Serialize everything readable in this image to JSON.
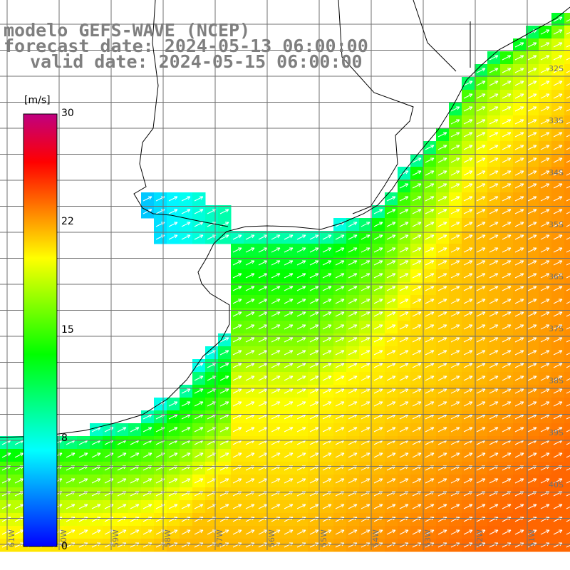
{
  "header": {
    "model": "modelo GEFS-WAVE (NCEP)",
    "forecast": "forecast date: 2024-05-13 06:00:00",
    "valid": "valid date: 2024-05-15 06:00:00"
  },
  "colorbar": {
    "unit": "[m/s]",
    "min": 0,
    "max": 30,
    "ticks": [
      "30",
      "22",
      "15",
      "8",
      "0"
    ],
    "tick_values": [
      30,
      22,
      15,
      8,
      0
    ],
    "gradient_colors": [
      "#0000ff",
      "#0080ff",
      "#00ffff",
      "#00ff80",
      "#00ff00",
      "#80ff00",
      "#ffff00",
      "#ff8000",
      "#ff0000",
      "#c00080"
    ]
  },
  "map": {
    "lat_labels": [
      "32S",
      "33S",
      "34S",
      "35S",
      "36S",
      "37S",
      "38S",
      "39S",
      "40S"
    ],
    "lon_labels": [
      "61W",
      "60W",
      "59W",
      "58W",
      "57W",
      "56W",
      "55W",
      "54W",
      "53W",
      "52W",
      "51W"
    ],
    "land_color": "#ffffff",
    "arrow_color": "#ffffff",
    "grid_color": "#707070",
    "coast_color": "#000000"
  }
}
